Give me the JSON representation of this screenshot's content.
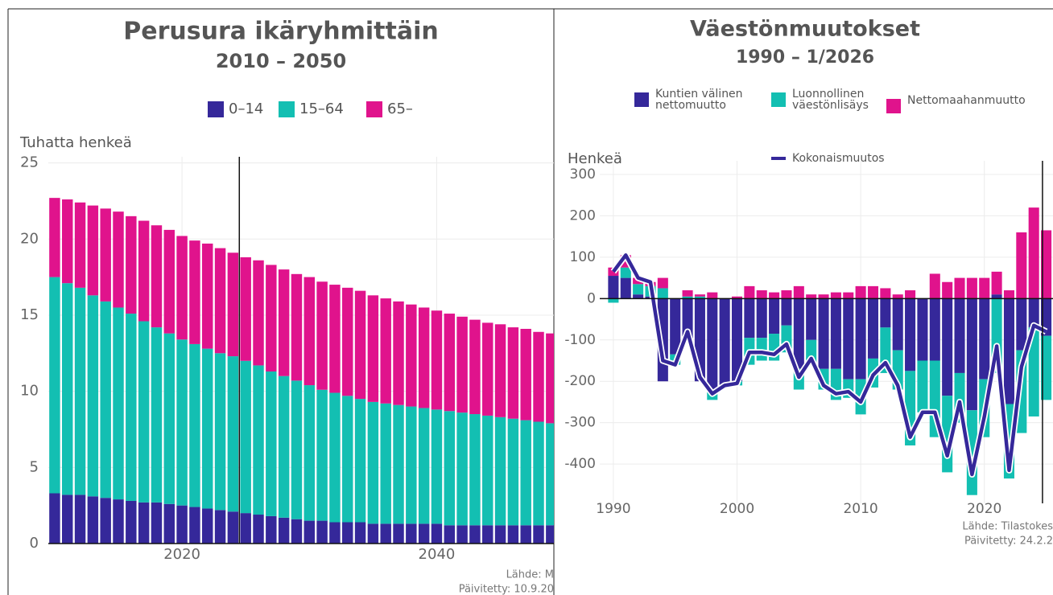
{
  "chart_data": [
    {
      "type": "bar",
      "stacked": true,
      "title": "Perusura ikäryhmittäin",
      "subtitle": "2010 – 2050",
      "ylabel": "Tuhatta henkeä",
      "source": "Lähde: M",
      "updated": "Päivitetty: 10.9.20",
      "x": [
        2010,
        2011,
        2012,
        2013,
        2014,
        2015,
        2016,
        2017,
        2018,
        2019,
        2020,
        2021,
        2022,
        2023,
        2024,
        2025,
        2026,
        2027,
        2028,
        2029,
        2030,
        2031,
        2032,
        2033,
        2034,
        2035,
        2036,
        2037,
        2038,
        2039,
        2040,
        2041,
        2042,
        2043,
        2044,
        2045,
        2046,
        2047,
        2048,
        2049
      ],
      "series": [
        {
          "name": "0–14",
          "color": "#35289a",
          "values": [
            3.3,
            3.2,
            3.2,
            3.1,
            3.0,
            2.9,
            2.8,
            2.7,
            2.7,
            2.6,
            2.5,
            2.4,
            2.3,
            2.2,
            2.1,
            2.0,
            1.9,
            1.8,
            1.7,
            1.6,
            1.5,
            1.5,
            1.4,
            1.4,
            1.4,
            1.3,
            1.3,
            1.3,
            1.3,
            1.3,
            1.3,
            1.2,
            1.2,
            1.2,
            1.2,
            1.2,
            1.2,
            1.2,
            1.2,
            1.2
          ]
        },
        {
          "name": "15–64",
          "color": "#13bfb2",
          "values": [
            14.2,
            13.9,
            13.6,
            13.2,
            12.9,
            12.6,
            12.3,
            11.9,
            11.5,
            11.2,
            10.9,
            10.7,
            10.5,
            10.3,
            10.2,
            10.0,
            9.8,
            9.5,
            9.3,
            9.1,
            8.9,
            8.6,
            8.5,
            8.3,
            8.1,
            8.0,
            7.9,
            7.8,
            7.7,
            7.6,
            7.5,
            7.5,
            7.4,
            7.3,
            7.2,
            7.1,
            7.0,
            6.9,
            6.8,
            6.7
          ]
        },
        {
          "name": "65–",
          "color": "#e0138c",
          "values": [
            5.2,
            5.5,
            5.6,
            5.9,
            6.1,
            6.3,
            6.4,
            6.6,
            6.7,
            6.8,
            6.8,
            6.8,
            6.9,
            6.9,
            6.8,
            6.8,
            6.9,
            7.0,
            7.0,
            7.0,
            7.1,
            7.1,
            7.1,
            7.1,
            7.1,
            7.0,
            6.9,
            6.8,
            6.7,
            6.6,
            6.5,
            6.4,
            6.3,
            6.2,
            6.1,
            6.1,
            6.0,
            6.0,
            5.9,
            5.9
          ]
        }
      ],
      "xlim": [
        2009.5,
        2049.2
      ],
      "xticks": [
        2020,
        2040
      ],
      "ylim": [
        0,
        25.4
      ],
      "yticks": [
        0,
        5,
        10,
        15,
        20,
        25
      ],
      "vline": 2024.5,
      "grid": true
    },
    {
      "type": "bar",
      "stacked": true,
      "title": "Väestönmuutokset",
      "subtitle": "1990 – 1/2026",
      "ylabel": "Henkeä",
      "source": "Lähde: Tilastokes",
      "updated": "Päivitetty: 24.2.2",
      "x": [
        1990,
        1991,
        1992,
        1993,
        1994,
        1995,
        1996,
        1997,
        1998,
        1999,
        2000,
        2001,
        2002,
        2003,
        2004,
        2005,
        2006,
        2007,
        2008,
        2009,
        2010,
        2011,
        2012,
        2013,
        2014,
        2015,
        2016,
        2017,
        2018,
        2019,
        2020,
        2021,
        2022,
        2023,
        2024,
        2025
      ],
      "series": [
        {
          "name": "Kuntien välinen nettomuutto",
          "color": "#35289a",
          "values": [
            55,
            50,
            10,
            5,
            -200,
            -135,
            -100,
            -200,
            -225,
            -210,
            -200,
            -95,
            -95,
            -85,
            -65,
            -170,
            -100,
            -170,
            -170,
            -195,
            -195,
            -145,
            -70,
            -125,
            -175,
            -150,
            -150,
            -235,
            -180,
            -270,
            -195,
            10,
            -255,
            -125,
            -70,
            -90
          ]
        },
        {
          "name": "Luonnollinen väestönlisäys",
          "color": "#13bfb2",
          "values": [
            -10,
            25,
            25,
            25,
            25,
            -25,
            5,
            5,
            -20,
            0,
            -10,
            -65,
            -55,
            -65,
            -65,
            -50,
            -55,
            -50,
            -75,
            -45,
            -85,
            -70,
            -110,
            -95,
            -180,
            -125,
            -185,
            -185,
            -120,
            -205,
            -140,
            -180,
            -180,
            -200,
            -215,
            -155
          ]
        },
        {
          "name": "Nettomaahanmuutto",
          "color": "#e0138c",
          "values": [
            20,
            30,
            15,
            10,
            25,
            0,
            15,
            5,
            15,
            0,
            5,
            30,
            20,
            15,
            20,
            30,
            10,
            10,
            15,
            15,
            30,
            30,
            25,
            10,
            20,
            0,
            60,
            40,
            50,
            50,
            50,
            55,
            20,
            160,
            220,
            165
          ]
        },
        {
          "name": "Kokonaismuutos",
          "type": "line",
          "color": "#35289a",
          "values": [
            65,
            105,
            50,
            40,
            -150,
            -160,
            -80,
            -190,
            -230,
            -210,
            -205,
            -130,
            -130,
            -135,
            -110,
            -190,
            -145,
            -210,
            -230,
            -225,
            -250,
            -185,
            -155,
            -210,
            -335,
            -275,
            -275,
            -380,
            -250,
            -425,
            -285,
            -115,
            -415,
            -165,
            -65,
            -80
          ]
        }
      ],
      "xlim": [
        1988.9,
        2025.55
      ],
      "xticks": [
        1990,
        2000,
        2010,
        2020
      ],
      "ylim": [
        -495,
        333
      ],
      "yticks": [
        300,
        200,
        100,
        0,
        -100,
        -200,
        -300,
        -400
      ],
      "vline": 2024.7,
      "grid": true
    }
  ]
}
